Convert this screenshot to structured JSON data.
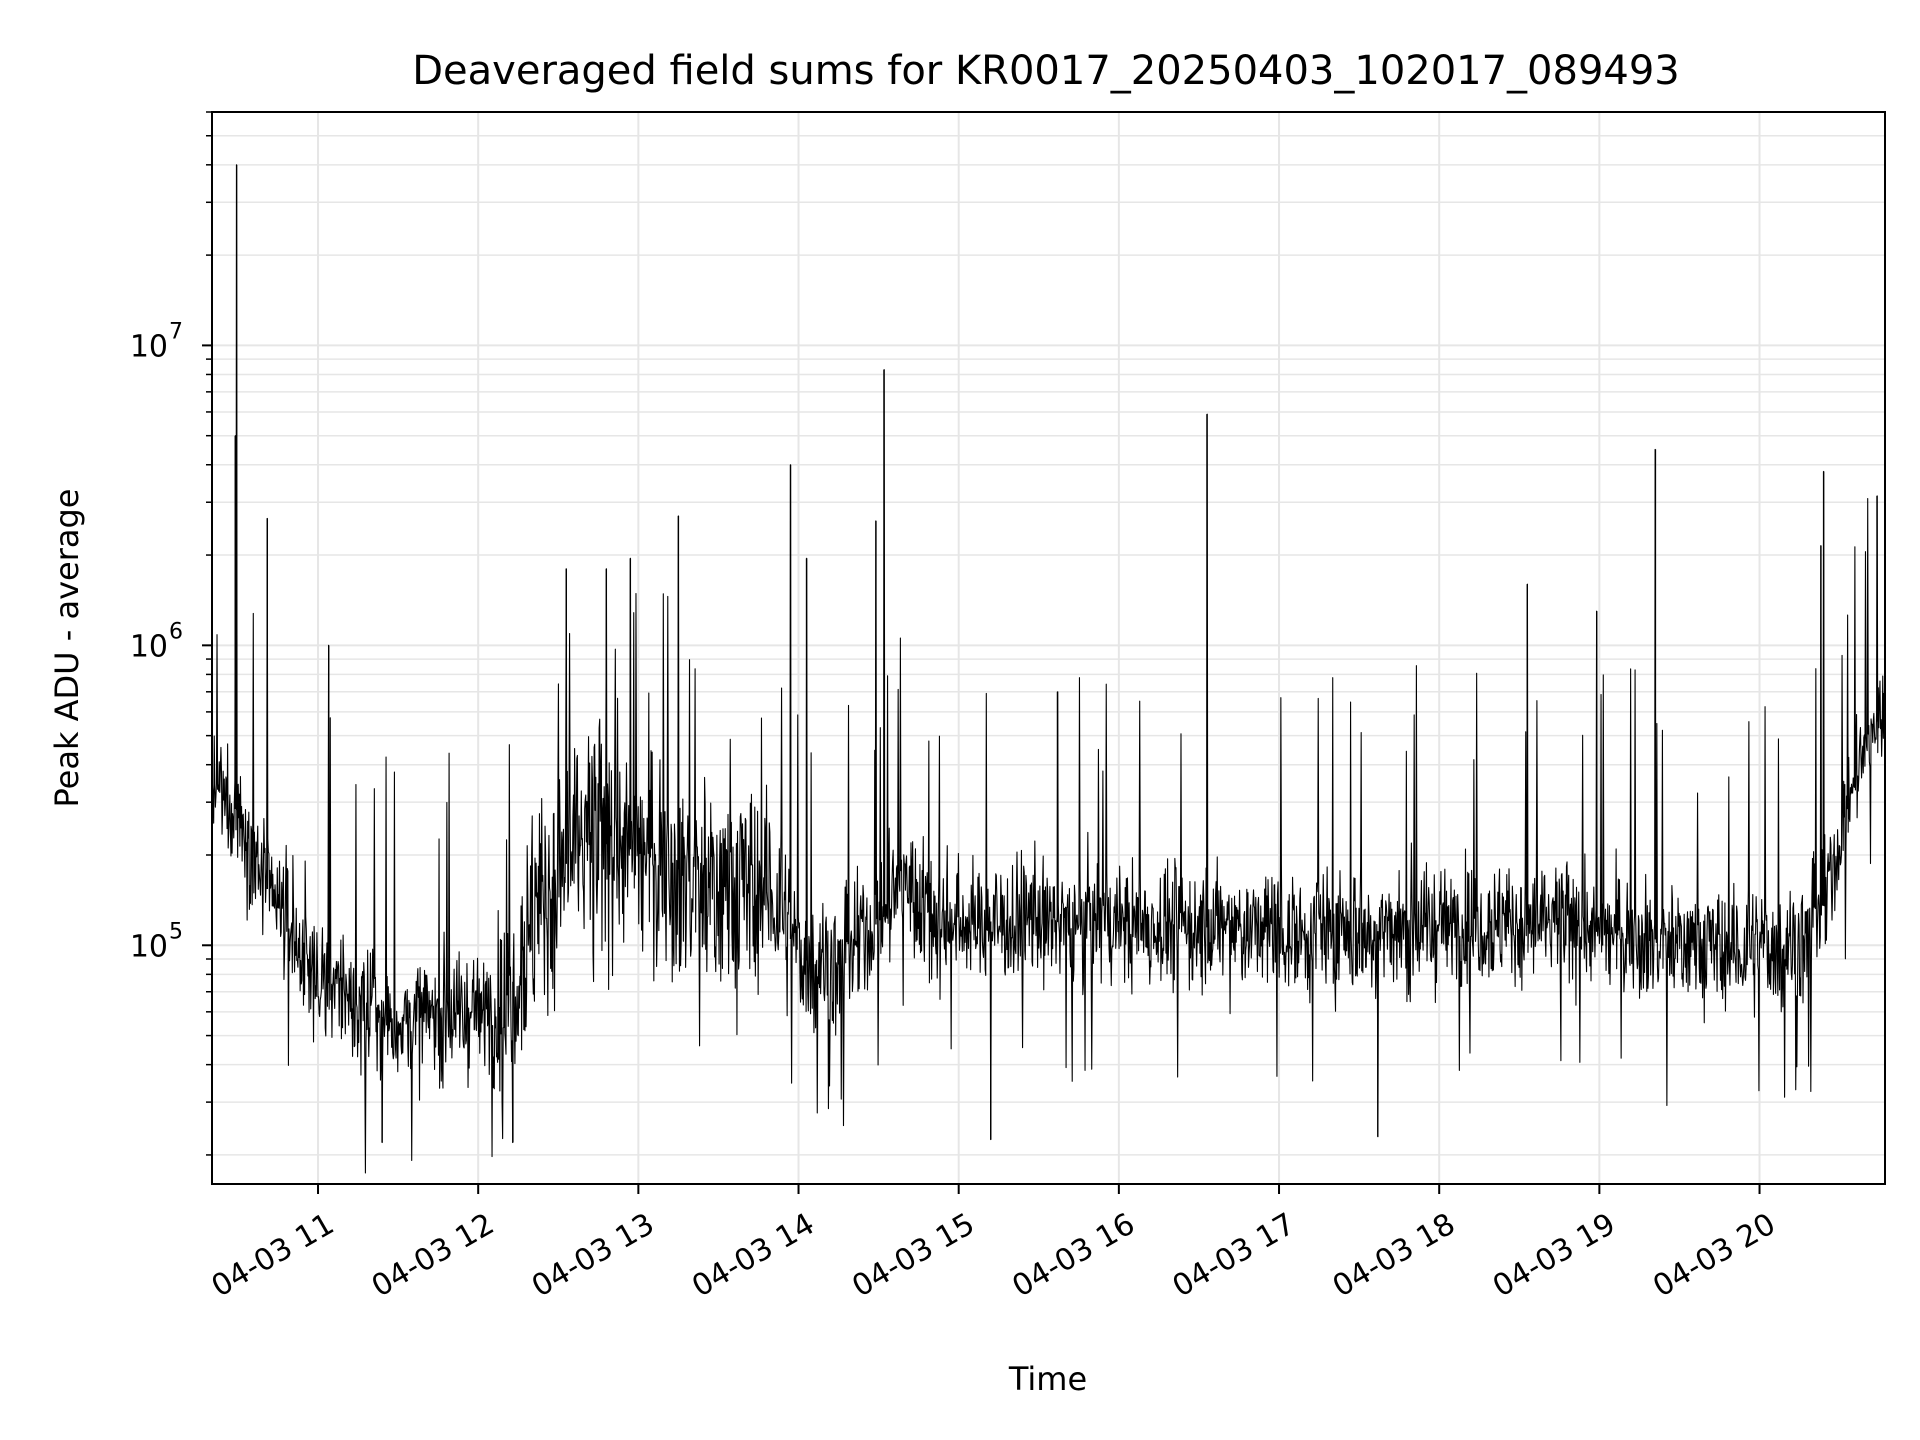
{
  "chart_data": {
    "type": "line",
    "title": "Deaveraged field sums for KR0017_20250403_102017_089493",
    "xlabel": "Time",
    "ylabel": "Peak ADU - average",
    "y_scale": "log",
    "ylim": [
      16000,
      60000000
    ],
    "x_range": [
      "2025-04-03T10:20:17",
      "2025-04-03T20:47:00"
    ],
    "grid": true,
    "line_color": "#000000",
    "grid_color": "#e6e6e6",
    "x_ticks": [
      {
        "t": "2025-04-03T11:00",
        "label": "04-03 11"
      },
      {
        "t": "2025-04-03T12:00",
        "label": "04-03 12"
      },
      {
        "t": "2025-04-03T13:00",
        "label": "04-03 13"
      },
      {
        "t": "2025-04-03T14:00",
        "label": "04-03 14"
      },
      {
        "t": "2025-04-03T15:00",
        "label": "04-03 15"
      },
      {
        "t": "2025-04-03T16:00",
        "label": "04-03 16"
      },
      {
        "t": "2025-04-03T17:00",
        "label": "04-03 17"
      },
      {
        "t": "2025-04-03T18:00",
        "label": "04-03 18"
      },
      {
        "t": "2025-04-03T19:00",
        "label": "04-03 19"
      },
      {
        "t": "2025-04-03T20:00",
        "label": "04-03 20"
      }
    ],
    "y_ticks": [
      {
        "value": 100000,
        "label": "10",
        "exp": "5"
      },
      {
        "value": 1000000,
        "label": "10",
        "exp": "6"
      },
      {
        "value": 10000000,
        "label": "10",
        "exp": "7"
      }
    ],
    "baseline": [
      [
        "2025-04-03T10:20",
        330000
      ],
      [
        "2025-04-03T10:30",
        280000
      ],
      [
        "2025-04-03T10:40",
        160000
      ],
      [
        "2025-04-03T10:50",
        110000
      ],
      [
        "2025-04-03T11:00",
        80000
      ],
      [
        "2025-04-03T11:15",
        62000
      ],
      [
        "2025-04-03T11:30",
        55000
      ],
      [
        "2025-04-03T11:45",
        58000
      ],
      [
        "2025-04-03T12:00",
        60000
      ],
      [
        "2025-04-03T12:10",
        62000
      ],
      [
        "2025-04-03T12:20",
        120000
      ],
      [
        "2025-04-03T12:35",
        200000
      ],
      [
        "2025-04-03T12:50",
        220000
      ],
      [
        "2025-04-03T13:10",
        190000
      ],
      [
        "2025-04-03T13:30",
        150000
      ],
      [
        "2025-04-03T13:50",
        150000
      ],
      [
        "2025-04-03T14:00",
        90000
      ],
      [
        "2025-04-03T14:15",
        85000
      ],
      [
        "2025-04-03T14:30",
        120000
      ],
      [
        "2025-04-03T14:40",
        170000
      ],
      [
        "2025-04-03T14:50",
        120000
      ],
      [
        "2025-04-03T15:30",
        120000
      ],
      [
        "2025-04-03T16:30",
        115000
      ],
      [
        "2025-04-03T17:30",
        110000
      ],
      [
        "2025-04-03T18:15",
        120000
      ],
      [
        "2025-04-03T18:45",
        115000
      ],
      [
        "2025-04-03T19:20",
        105000
      ],
      [
        "2025-04-03T19:50",
        95000
      ],
      [
        "2025-04-03T20:15",
        100000
      ],
      [
        "2025-04-03T20:25",
        140000
      ],
      [
        "2025-04-03T20:35",
        350000
      ],
      [
        "2025-04-03T20:47",
        650000
      ]
    ],
    "noise_spread": [
      [
        "2025-04-03T10:20",
        0.18
      ],
      [
        "2025-04-03T11:00",
        0.22
      ],
      [
        "2025-04-03T12:00",
        0.2
      ],
      [
        "2025-04-03T12:20",
        0.4
      ],
      [
        "2025-04-03T13:40",
        0.38
      ],
      [
        "2025-04-03T14:00",
        0.22
      ],
      [
        "2025-04-03T20:20",
        0.2
      ],
      [
        "2025-04-03T20:47",
        0.15
      ]
    ],
    "spikes": [
      {
        "t": "2025-04-03T10:29:30",
        "value": 40000000
      },
      {
        "t": "2025-04-03T10:29:00",
        "value": 5000000
      },
      {
        "t": "2025-04-03T10:41:00",
        "value": 2650000
      },
      {
        "t": "2025-04-03T11:04:00",
        "value": 1000000
      },
      {
        "t": "2025-04-03T12:33:00",
        "value": 1800000
      },
      {
        "t": "2025-04-03T12:48:00",
        "value": 1800000
      },
      {
        "t": "2025-04-03T12:57:00",
        "value": 1950000
      },
      {
        "t": "2025-04-03T13:15:00",
        "value": 2700000
      },
      {
        "t": "2025-04-03T13:57:00",
        "value": 4000000
      },
      {
        "t": "2025-04-03T14:03:00",
        "value": 1950000
      },
      {
        "t": "2025-04-03T14:29:00",
        "value": 2600000
      },
      {
        "t": "2025-04-03T14:32:00",
        "value": 8300000
      },
      {
        "t": "2025-04-03T15:37:00",
        "value": 700000
      },
      {
        "t": "2025-04-03T16:33:00",
        "value": 5900000
      },
      {
        "t": "2025-04-03T18:33:00",
        "value": 1600000
      },
      {
        "t": "2025-04-03T18:59:00",
        "value": 1300000
      },
      {
        "t": "2025-04-03T19:21:00",
        "value": 4500000
      },
      {
        "t": "2025-04-03T20:23:00",
        "value": 2150000
      },
      {
        "t": "2025-04-03T20:24:00",
        "value": 3800000
      },
      {
        "t": "2025-04-03T20:44:00",
        "value": 3150000
      }
    ],
    "dips": [
      {
        "t": "2025-04-03T11:24:00",
        "value": 22000
      },
      {
        "t": "2025-04-03T12:13:00",
        "value": 22000
      },
      {
        "t": "2025-04-03T15:12:00",
        "value": 22500
      },
      {
        "t": "2025-04-03T17:37:00",
        "value": 23000
      }
    ],
    "samples": 3000
  }
}
